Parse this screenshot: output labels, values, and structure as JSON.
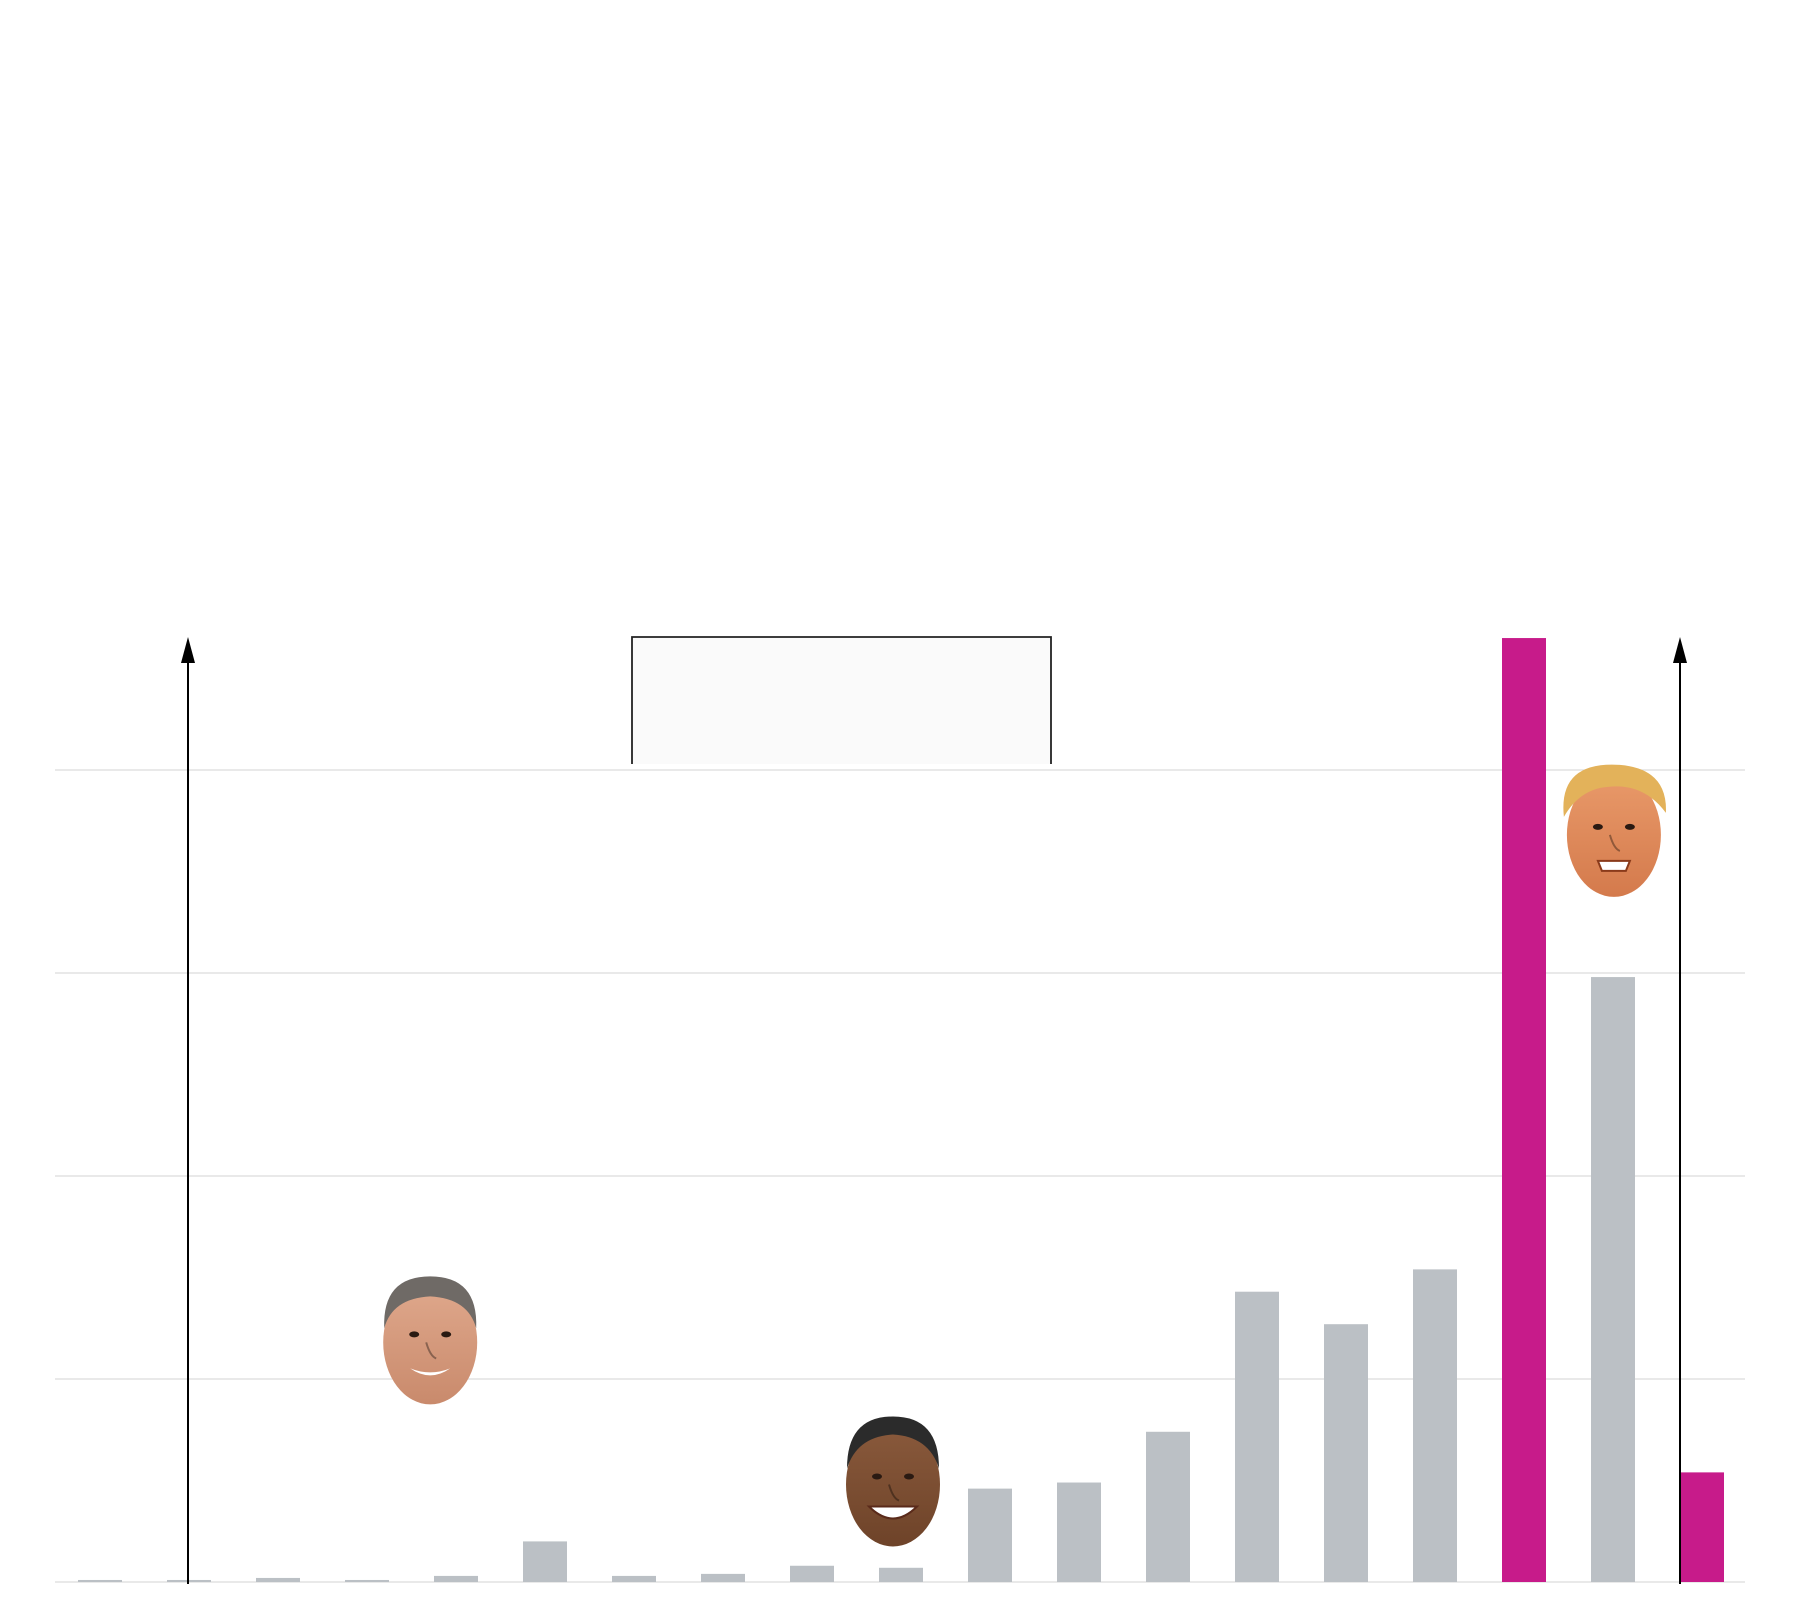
{
  "colors": {
    "bar_default": "#bbc0c5",
    "bar_highlight": "#c71b8a",
    "gridline": "#dcdcdc",
    "axis": "#000000",
    "callout_fill": "#fafafa",
    "background": "#ffffff"
  },
  "chart_data": {
    "type": "bar",
    "title": "",
    "xlabel": "",
    "ylabel": "",
    "ylim": [
      0,
      4.6
    ],
    "grid": true,
    "gridlines_at": [
      1,
      2,
      3,
      4
    ],
    "n_bars": 19,
    "values": [
      0.01,
      0.01,
      0.02,
      0.01,
      0.03,
      0.2,
      0.03,
      0.04,
      0.08,
      0.07,
      0.46,
      0.49,
      0.74,
      1.43,
      1.27,
      1.54,
      4.65,
      2.98,
      0.54
    ],
    "highlighted_indices": [
      16,
      18
    ],
    "markers": [
      {
        "name": "term-start-arrow-1",
        "after_index": 1
      },
      {
        "name": "term-start-arrow-2",
        "after_index": 17
      }
    ],
    "callout_box": {
      "from_index": 6,
      "to_index": 11
    },
    "portraits": [
      {
        "name": "bush-portrait",
        "at_index": 3.8,
        "level": 1.2
      },
      {
        "name": "obama-portrait",
        "at_index": 9.0,
        "level": 0.5
      },
      {
        "name": "trump-portrait",
        "at_index": 17.1,
        "level": 3.7
      }
    ]
  }
}
